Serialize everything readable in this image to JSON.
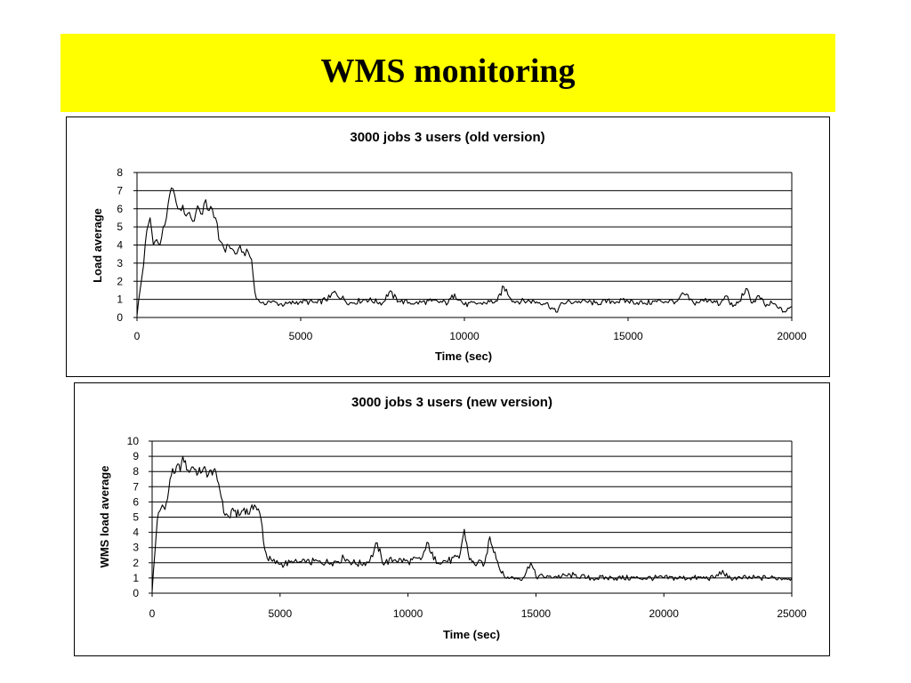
{
  "slide": {
    "title": "WMS monitoring",
    "title_band_color": "#ffff00"
  },
  "chart_data": [
    {
      "type": "line",
      "title": "3000 jobs 3 users  (old version)",
      "xlabel": "Time (sec)",
      "ylabel": "Load average",
      "xlim": [
        0,
        20000
      ],
      "ylim": [
        0,
        8
      ],
      "x_ticks": [
        "0",
        "5000",
        "10000",
        "15000",
        "20000"
      ],
      "y_ticks": [
        "0",
        "1",
        "2",
        "3",
        "4",
        "5",
        "6",
        "7",
        "8"
      ],
      "grid": "horizontal",
      "line_color": "#000000",
      "series": [
        {
          "x": [
            0,
            100,
            200,
            300,
            400,
            500,
            600,
            700,
            800,
            900,
            1000,
            1100,
            1200,
            1300,
            1400,
            1500,
            1600,
            1700,
            1800,
            1900,
            2000,
            2100,
            2200,
            2300,
            2400,
            2500,
            2600,
            2700,
            2800,
            2900,
            3000,
            3100,
            3200,
            3300,
            3400,
            3500,
            3600,
            3700,
            3800,
            3900,
            4000,
            4500,
            5000,
            5500,
            5900,
            6000,
            6500,
            7000,
            7500,
            7700,
            8000,
            8500,
            9000,
            9500,
            9700,
            10000,
            10500,
            11000,
            11200,
            11500,
            12000,
            12500,
            12800,
            13000,
            13500,
            14000,
            14500,
            15000,
            15500,
            16000,
            16500,
            16700,
            17000,
            17500,
            17800,
            18000,
            18200,
            18400,
            18600,
            18800,
            19000,
            19200,
            19400,
            19600,
            19800,
            20000
          ],
          "y": [
            0.1,
            1.6,
            2.9,
            4.8,
            5.5,
            4.0,
            4.3,
            4.0,
            5.0,
            5.5,
            6.8,
            7.1,
            6.3,
            6.0,
            6.2,
            5.6,
            5.8,
            5.3,
            5.8,
            6.0,
            5.7,
            6.5,
            5.9,
            6.0,
            5.5,
            4.3,
            4.1,
            3.6,
            4.0,
            3.8,
            3.5,
            3.8,
            3.6,
            3.4,
            3.6,
            3.2,
            1.4,
            1.0,
            0.8,
            0.7,
            0.9,
            0.7,
            0.9,
            0.8,
            1.1,
            1.4,
            0.8,
            1.0,
            0.8,
            1.4,
            0.9,
            0.8,
            0.9,
            0.8,
            1.3,
            0.7,
            0.8,
            0.9,
            1.7,
            0.9,
            0.9,
            0.8,
            0.3,
            0.8,
            0.9,
            0.8,
            0.9,
            0.9,
            0.8,
            0.9,
            0.9,
            1.3,
            0.8,
            1.0,
            0.7,
            1.2,
            0.6,
            0.9,
            1.6,
            0.8,
            1.2,
            0.6,
            0.8,
            0.5,
            0.3,
            0.6
          ]
        }
      ]
    },
    {
      "type": "line",
      "title": "3000 jobs 3 users (new version)",
      "xlabel": "Time (sec)",
      "ylabel": "WMS load average",
      "xlim": [
        0,
        25000
      ],
      "ylim": [
        0,
        10
      ],
      "x_ticks": [
        "0",
        "5000",
        "10000",
        "15000",
        "20000",
        "25000"
      ],
      "y_ticks": [
        "0",
        "1",
        "2",
        "3",
        "4",
        "5",
        "6",
        "7",
        "8",
        "9",
        "10"
      ],
      "grid": "horizontal",
      "line_color": "#000000",
      "series": [
        {
          "x": [
            0,
            100,
            200,
            300,
            400,
            500,
            600,
            700,
            800,
            900,
            1000,
            1100,
            1200,
            1400,
            1600,
            1800,
            2000,
            2200,
            2400,
            2600,
            2700,
            2800,
            3000,
            3200,
            3400,
            3600,
            3800,
            4000,
            4200,
            4300,
            4400,
            4500,
            4700,
            5000,
            5500,
            6000,
            6500,
            7000,
            7500,
            8000,
            8500,
            8800,
            9000,
            9500,
            10000,
            10500,
            10800,
            11000,
            11500,
            12000,
            12200,
            12400,
            12600,
            13000,
            13200,
            13400,
            13600,
            13800,
            14000,
            14500,
            14800,
            15000,
            15500,
            16000,
            16500,
            17000,
            18000,
            19000,
            20000,
            21000,
            22000,
            22300,
            22500,
            23000,
            24000,
            25000
          ],
          "y": [
            0.1,
            2.5,
            4.8,
            5.4,
            5.8,
            5.5,
            6.2,
            7.5,
            8.2,
            7.9,
            8.5,
            8.0,
            9.0,
            8.1,
            8.3,
            7.9,
            8.2,
            7.8,
            8.1,
            7.2,
            6.3,
            5.3,
            5.0,
            5.4,
            5.1,
            5.6,
            5.2,
            5.8,
            5.3,
            4.4,
            2.9,
            2.3,
            2.1,
            1.9,
            2.0,
            2.0,
            2.1,
            2.0,
            2.3,
            1.9,
            2.1,
            3.3,
            2.0,
            2.2,
            2.1,
            2.2,
            3.3,
            2.2,
            2.1,
            2.3,
            4.2,
            2.2,
            1.9,
            2.0,
            3.7,
            2.7,
            1.5,
            1.0,
            1.0,
            1.0,
            2.0,
            1.1,
            1.1,
            1.1,
            1.2,
            1.0,
            1.0,
            1.0,
            1.0,
            1.0,
            1.0,
            1.5,
            1.0,
            1.0,
            1.0,
            1.0
          ]
        }
      ]
    }
  ]
}
